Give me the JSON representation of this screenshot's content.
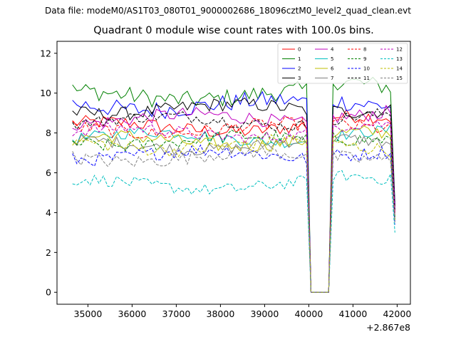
{
  "figure": {
    "suptitle": "Data file: modeM0/AS1T03_080T01_9000002686_18096cztM0_level2_quad_clean.evt",
    "title": "Quadrant 0 module wise count rates with 100.0s bins.",
    "x_offset_label": "+2.867e8"
  },
  "chart_data": {
    "type": "line",
    "title": "Quadrant 0 module wise count rates with 100.0s bins.",
    "xlabel": "",
    "ylabel": "",
    "xlim": [
      34300,
      42300
    ],
    "ylim": [
      -0.6,
      12.6
    ],
    "x_ticks": [
      35000,
      36000,
      37000,
      38000,
      39000,
      40000,
      41000,
      42000
    ],
    "x_tick_labels": [
      "35000",
      "36000",
      "37000",
      "38000",
      "39000",
      "40000",
      "41000",
      "42000"
    ],
    "y_ticks": [
      0,
      2,
      4,
      6,
      8,
      10,
      12
    ],
    "y_tick_labels": [
      "0",
      "2",
      "4",
      "6",
      "8",
      "10",
      "12"
    ],
    "x_offset": 286700000,
    "bin_size_s": 100,
    "x_start": 34650,
    "x_end": 41950,
    "gap": {
      "x_start": 40050,
      "x_end": 40450,
      "value": 0
    },
    "legend_position": "top-right",
    "series": [
      {
        "name": "0",
        "color": "#ff0000",
        "dash": "solid",
        "mean": 8.3,
        "amp": 0.35,
        "pre_drop": 4.0,
        "mid": 8.6
      },
      {
        "name": "1",
        "color": "#008000",
        "dash": "solid",
        "mean": 9.9,
        "amp": 0.45,
        "pre_drop": 4.5,
        "mid": 10.4
      },
      {
        "name": "2",
        "color": "#0000ff",
        "dash": "solid",
        "mean": 9.4,
        "amp": 0.45,
        "pre_drop": 4.4,
        "mid": 9.6
      },
      {
        "name": "3",
        "color": "#000000",
        "dash": "solid",
        "mean": 9.2,
        "amp": 0.35,
        "pre_drop": 4.3,
        "mid": 9.3
      },
      {
        "name": "4",
        "color": "#bf00bf",
        "dash": "solid",
        "mean": 8.7,
        "amp": 0.35,
        "pre_drop": 4.2,
        "mid": 9.0
      },
      {
        "name": "5",
        "color": "#00bfbf",
        "dash": "solid",
        "mean": 7.8,
        "amp": 0.3,
        "pre_drop": 3.8,
        "mid": 7.9
      },
      {
        "name": "6",
        "color": "#bfbf00",
        "dash": "solid",
        "mean": 7.6,
        "amp": 0.35,
        "pre_drop": 3.7,
        "mid": 7.8
      },
      {
        "name": "7",
        "color": "#808080",
        "dash": "solid",
        "mean": 7.4,
        "amp": 0.3,
        "pre_drop": 3.6,
        "mid": 7.5
      },
      {
        "name": "8",
        "color": "#ff0000",
        "dash": "dashed",
        "mean": 8.2,
        "amp": 0.35,
        "pre_drop": 4.0,
        "mid": 8.4
      },
      {
        "name": "9",
        "color": "#008000",
        "dash": "dashed",
        "mean": 7.6,
        "amp": 0.35,
        "pre_drop": 3.7,
        "mid": 7.9
      },
      {
        "name": "10",
        "color": "#0000ff",
        "dash": "dashed",
        "mean": 6.9,
        "amp": 0.35,
        "pre_drop": 3.4,
        "mid": 7.1
      },
      {
        "name": "11",
        "color": "#000000",
        "dash": "dashed",
        "mean": 8.6,
        "amp": 0.3,
        "pre_drop": 4.1,
        "mid": 8.8
      },
      {
        "name": "12",
        "color": "#bf00bf",
        "dash": "dashed",
        "mean": 8.0,
        "amp": 0.3,
        "pre_drop": 3.9,
        "mid": 8.2
      },
      {
        "name": "13",
        "color": "#00bfbf",
        "dash": "dashed",
        "mean": 5.4,
        "amp": 0.3,
        "pre_drop": 3.0,
        "mid": 5.6
      },
      {
        "name": "14",
        "color": "#bfbf00",
        "dash": "dashed",
        "mean": 7.4,
        "amp": 0.35,
        "pre_drop": 3.6,
        "mid": 7.3
      },
      {
        "name": "15",
        "color": "#808080",
        "dash": "dashed",
        "mean": 6.8,
        "amp": 0.35,
        "pre_drop": 3.5,
        "mid": 6.9
      }
    ]
  }
}
